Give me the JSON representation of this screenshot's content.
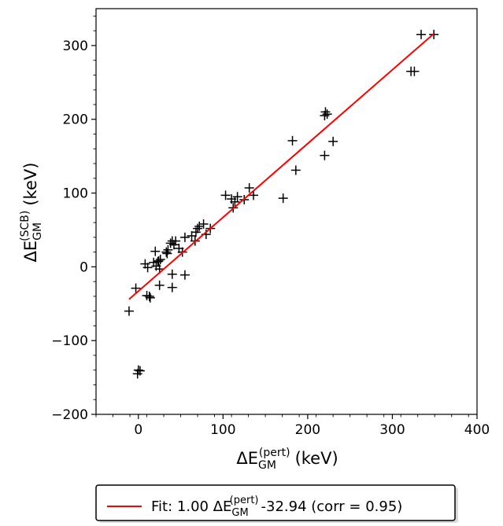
{
  "chart_data": {
    "type": "scatter",
    "xlabel": {
      "prefix": "ΔE",
      "sub": "GM",
      "sup": "(pert)",
      "unit": "(keV)"
    },
    "ylabel": {
      "prefix": "ΔE",
      "sub": "GM",
      "sup": "(SCB)",
      "unit": "(keV)"
    },
    "xlim": [
      -50,
      400
    ],
    "ylim": [
      -200,
      350
    ],
    "xticks": [
      0,
      100,
      200,
      300,
      400
    ],
    "yticks": [
      -200,
      -100,
      0,
      100,
      200,
      300
    ],
    "xtick_labels": [
      "0",
      "100",
      "200",
      "300",
      "400"
    ],
    "ytick_labels": [
      "−200",
      "−100",
      "0",
      "100",
      "200",
      "300"
    ],
    "grid": false,
    "legend_position": "below",
    "colors": {
      "points": "#000000",
      "fit": "#ff0000"
    },
    "series": [
      {
        "marker": "plus",
        "points": [
          [
            -11,
            -60
          ],
          [
            -3,
            -29
          ],
          [
            -1,
            -145
          ],
          [
            0,
            -140
          ],
          [
            2,
            -141
          ],
          [
            8,
            4
          ],
          [
            10,
            -39
          ],
          [
            11,
            -1
          ],
          [
            13,
            -40
          ],
          [
            14,
            -42
          ],
          [
            18,
            6
          ],
          [
            20,
            21
          ],
          [
            21,
            1
          ],
          [
            23,
            7
          ],
          [
            24,
            8
          ],
          [
            25,
            -3
          ],
          [
            26,
            10
          ],
          [
            25,
            -25
          ],
          [
            33,
            20
          ],
          [
            34,
            18
          ],
          [
            35,
            23
          ],
          [
            38,
            32
          ],
          [
            40,
            35
          ],
          [
            42,
            30
          ],
          [
            40,
            -10
          ],
          [
            40,
            -28
          ],
          [
            44,
            35
          ],
          [
            48,
            25
          ],
          [
            52,
            20
          ],
          [
            55,
            40
          ],
          [
            55,
            -11
          ],
          [
            63,
            42
          ],
          [
            67,
            35
          ],
          [
            68,
            47
          ],
          [
            70,
            52
          ],
          [
            72,
            55
          ],
          [
            77,
            58
          ],
          [
            80,
            44
          ],
          [
            85,
            52
          ],
          [
            103,
            97
          ],
          [
            110,
            92
          ],
          [
            112,
            80
          ],
          [
            114,
            88
          ],
          [
            117,
            95
          ],
          [
            125,
            91
          ],
          [
            131,
            107
          ],
          [
            136,
            97
          ],
          [
            171,
            93
          ],
          [
            182,
            171
          ],
          [
            186,
            131
          ],
          [
            220,
            205
          ],
          [
            221,
            210
          ],
          [
            223,
            207
          ],
          [
            220,
            151
          ],
          [
            230,
            170
          ],
          [
            322,
            265
          ],
          [
            326,
            265
          ],
          [
            334,
            315
          ],
          [
            349,
            315
          ]
        ]
      }
    ],
    "fit": {
      "slope": 1.0,
      "intercept": -32.94,
      "x_range": [
        -11,
        349
      ],
      "legend_label": {
        "prefix": "Fit: 1.00 ΔE",
        "sub": "GM",
        "sup": "(pert)",
        "suffix": "-32.94 (corr = 0.95)"
      }
    }
  }
}
